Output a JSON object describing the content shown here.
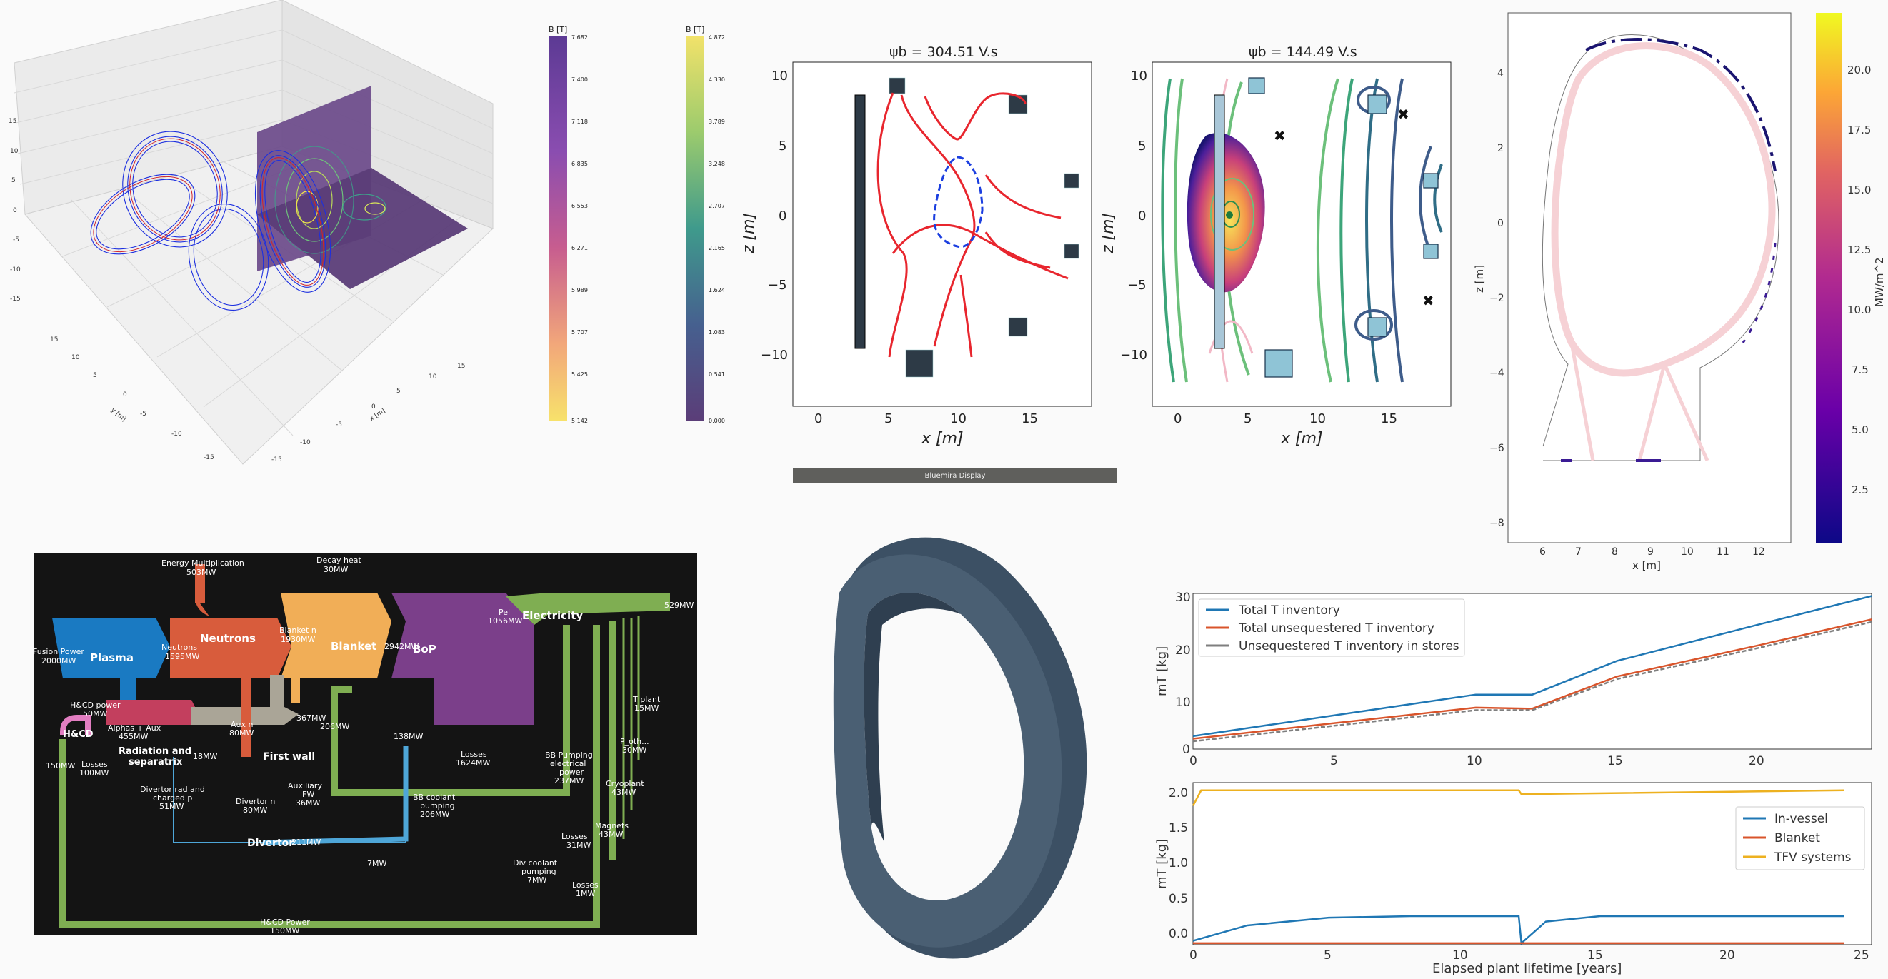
{
  "colorbar_b1": {
    "label": "B [T]",
    "ticks": [
      "7.682",
      "7.400",
      "7.118",
      "6.835",
      "6.553",
      "6.271",
      "5.989",
      "5.707",
      "5.425",
      "5.142"
    ]
  },
  "colorbar_b2": {
    "label": "B [T]",
    "ticks": [
      "4.872",
      "4.330",
      "3.789",
      "3.248",
      "2.707",
      "2.165",
      "1.624",
      "1.083",
      "0.541",
      "0.000"
    ]
  },
  "axes3d": {
    "xlabel": "x [m]",
    "ylabel": "y [m]",
    "zticks": [
      "15",
      "10",
      "5",
      "0",
      "-5",
      "-10",
      "-15"
    ],
    "xticks": [
      "-15",
      "-10",
      "-5",
      "0",
      "5",
      "10",
      "15"
    ],
    "yticks": [
      "15",
      "10",
      "5",
      "0",
      "-5",
      "-10",
      "-15"
    ]
  },
  "eq1": {
    "title": "ψb = 304.51 V.s",
    "xlabel": "x [m]",
    "ylabel": "z [m]",
    "xticks": [
      "0",
      "5",
      "10",
      "15"
    ],
    "yticks": [
      "10",
      "5",
      "0",
      "−5",
      "−10"
    ]
  },
  "eq2": {
    "title": "ψb = 144.49 V.s",
    "xlabel": "x [m]",
    "ylabel": "z [m]",
    "xticks": [
      "0",
      "5",
      "10",
      "15"
    ],
    "yticks": [
      "10",
      "5",
      "0",
      "−5",
      "−10"
    ]
  },
  "display_bar": "Bluemira Display",
  "heat": {
    "xlabel": "x [m]",
    "ylabel": "z [m]",
    "cbar_label": "MW/m^2",
    "xticks": [
      "6",
      "7",
      "8",
      "9",
      "10",
      "11",
      "12"
    ],
    "yticks": [
      "4",
      "2",
      "0",
      "−2",
      "−4",
      "−6",
      "−8"
    ],
    "cticks": [
      "20.0",
      "17.5",
      "15.0",
      "12.5",
      "10.0",
      "7.5",
      "5.0",
      "2.5"
    ]
  },
  "sankey": {
    "energy_mult": "Energy Multiplication",
    "energy_mult_val": "503MW",
    "decay_heat": "Decay heat",
    "decay_heat_val": "30MW",
    "fusion_power": "Fusion Power",
    "fusion_power_val": "2000MW",
    "plasma": "Plasma",
    "neutrons": "Neutrons",
    "neutrons_in": "Neutrons",
    "neutrons_in_val": "1595MW",
    "blanket": "Blanket",
    "blanket_in": "Blanket n",
    "blanket_in_val": "1930MW",
    "bop_in": "2942MW",
    "bop": "BoP",
    "pel": "Pel",
    "pel_val": "1056MW",
    "electricity": "Electricity",
    "out": "529MW",
    "hcd_power": "H&CD power",
    "hcd_power_val": "50MW",
    "alphas": "Alphas + Aux",
    "alphas_val": "455MW",
    "aux_n": "Aux n",
    "aux_n_val": "80MW",
    "v367": "367MW",
    "v206": "206MW",
    "v138": "138MW",
    "losses1624": "Losses",
    "losses1624_val": "1624MW",
    "hcd": "H&CD",
    "v150": "150MW",
    "losses100": "Losses",
    "losses100_val": "100MW",
    "radiation": "Radiation and",
    "radiation2": "separatrix",
    "v18": "18MW",
    "first_wall": "First wall",
    "div_rad": "Divertor rad and",
    "div_rad2": "charged p",
    "div_rad3": "51MW",
    "div_n": "Divertor n",
    "div_n_val": "80MW",
    "aux_fw": "Auxiliary",
    "aux_fw2": "FW",
    "aux_fw3": "36MW",
    "divertor": "Divertor",
    "v211": "211MW",
    "v7": "7MW",
    "bb_coolant": "BB coolant",
    "bb_coolant2": "pumping",
    "bb_coolant3": "206MW",
    "bb_pump": "BB Pumping",
    "bb_pump2": "electrical",
    "bb_pump3": "power",
    "bb_pump4": "237MW",
    "losses31": "Losses",
    "losses31_val": "31MW",
    "div_cool": "Div coolant",
    "div_cool2": "pumping",
    "div_cool3": "7MW",
    "losses1": "Losses",
    "losses1_val": "1MW",
    "tplant": "T plant",
    "tplant_val": "15MW",
    "poth": "P_oth...",
    "poth_val": "30MW",
    "cryo": "Cryoplant",
    "cryo_val": "43MW",
    "magnets": "Magnets",
    "magnets_val": "43MW",
    "hcd_bottom": "H&CD Power",
    "hcd_bottom_val": "150MW"
  },
  "tinv": {
    "ylabel_top": "mT [kg]",
    "ylabel_bottom": "mT [kg]",
    "xlabel": "Elapsed plant lifetime [years]",
    "legend_top": [
      "Total T inventory",
      "Total unsequestered T inventory",
      "Unsequestered T inventory in stores"
    ],
    "legend_bottom": [
      "In-vessel",
      "Blanket",
      "TFV systems"
    ],
    "yticks_top": [
      "30",
      "20",
      "10",
      "0"
    ],
    "yticks_bottom": [
      "2.0",
      "1.5",
      "1.0",
      "0.5",
      "0.0"
    ],
    "xticks": [
      "0",
      "5",
      "10",
      "15",
      "20",
      "25"
    ],
    "colors": {
      "total": "#1f77b4",
      "unseq": "#d9542b",
      "stores": "#7f7f7f",
      "invessel": "#1f77b4",
      "blanket": "#d9542b",
      "tfv": "#edb120"
    }
  },
  "chart_data": [
    {
      "type": "line",
      "title": "",
      "xlabel": "",
      "ylabel": "mT [kg]",
      "xlim": [
        0,
        24
      ],
      "ylim": [
        0,
        30
      ],
      "series": [
        {
          "name": "Total T inventory",
          "x": [
            0,
            5,
            10,
            12,
            15,
            20,
            24
          ],
          "y": [
            2.5,
            6.5,
            10.5,
            10.5,
            17,
            24,
            29.5
          ]
        },
        {
          "name": "Total unsequestered T inventory",
          "x": [
            0,
            5,
            10,
            12,
            15,
            20,
            24
          ],
          "y": [
            2,
            5,
            8,
            7.8,
            14,
            20,
            25
          ]
        },
        {
          "name": "Unsequestered T inventory in stores",
          "x": [
            0,
            5,
            10,
            12,
            15,
            20,
            24
          ],
          "y": [
            1.5,
            4.5,
            7.5,
            7.5,
            13.5,
            19.5,
            24.5
          ]
        }
      ]
    },
    {
      "type": "line",
      "title": "",
      "xlabel": "Elapsed plant lifetime [years]",
      "ylabel": "mT [kg]",
      "xlim": [
        0,
        25
      ],
      "ylim": [
        0,
        2.1
      ],
      "series": [
        {
          "name": "In-vessel",
          "x": [
            0,
            2,
            5,
            8,
            12,
            12.1,
            13,
            15,
            24
          ],
          "y": [
            0.05,
            0.25,
            0.35,
            0.37,
            0.37,
            0.02,
            0.3,
            0.37,
            0.37
          ]
        },
        {
          "name": "Blanket",
          "x": [
            0,
            24
          ],
          "y": [
            0.02,
            0.02
          ]
        },
        {
          "name": "TFV systems",
          "x": [
            0,
            0.3,
            5,
            12,
            12.1,
            24
          ],
          "y": [
            1.8,
            2.0,
            2.0,
            2.0,
            1.95,
            2.0
          ]
        }
      ]
    }
  ]
}
